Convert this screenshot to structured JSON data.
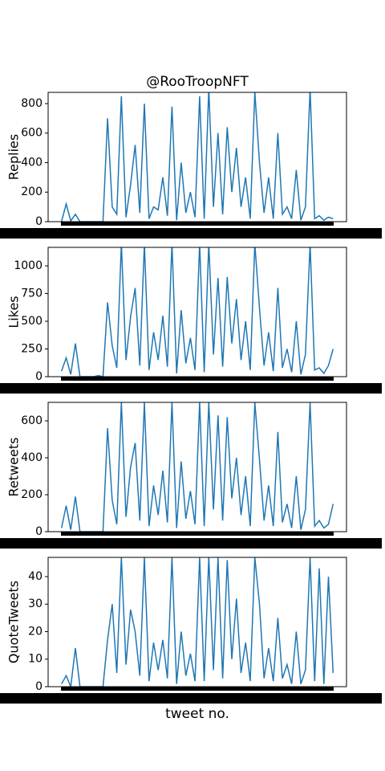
{
  "chart_data": [
    {
      "type": "line",
      "title": "@RooTroopNFT",
      "ylabel": "Replies",
      "color": "#1f77b4",
      "values": [
        0,
        120,
        5,
        50,
        0,
        0,
        0,
        0,
        0,
        0,
        700,
        100,
        50,
        850,
        30,
        250,
        520,
        60,
        800,
        20,
        100,
        80,
        300,
        40,
        780,
        10,
        400,
        60,
        200,
        30,
        850,
        20,
        900,
        100,
        600,
        50,
        640,
        200,
        500,
        100,
        300,
        20,
        880,
        400,
        60,
        300,
        20,
        600,
        50,
        100,
        20,
        350,
        10,
        100,
        900,
        20,
        40,
        10,
        30,
        20
      ],
      "ylim": [
        0,
        876
      ],
      "yticks": [
        0,
        200,
        400,
        600,
        800
      ]
    },
    {
      "type": "line",
      "ylabel": "Likes",
      "color": "#1f77b4",
      "values": [
        50,
        170,
        20,
        300,
        0,
        0,
        0,
        0,
        10,
        0,
        670,
        280,
        80,
        1200,
        150,
        540,
        800,
        100,
        1200,
        60,
        400,
        150,
        550,
        90,
        1200,
        30,
        600,
        120,
        350,
        60,
        1200,
        40,
        1200,
        200,
        890,
        90,
        900,
        300,
        700,
        150,
        500,
        60,
        1200,
        620,
        100,
        400,
        50,
        800,
        80,
        250,
        40,
        500,
        20,
        200,
        1200,
        60,
        80,
        30,
        100,
        250
      ],
      "ylim": [
        0,
        1167
      ],
      "yticks": [
        0,
        250,
        500,
        750,
        1000
      ]
    },
    {
      "type": "line",
      "ylabel": "Retweets",
      "color": "#1f77b4",
      "values": [
        20,
        140,
        10,
        190,
        0,
        0,
        0,
        0,
        0,
        0,
        560,
        170,
        40,
        700,
        80,
        350,
        480,
        60,
        700,
        30,
        250,
        90,
        330,
        50,
        700,
        20,
        380,
        70,
        220,
        40,
        700,
        30,
        700,
        120,
        630,
        60,
        620,
        180,
        400,
        90,
        300,
        30,
        700,
        390,
        60,
        250,
        30,
        540,
        50,
        150,
        20,
        300,
        10,
        120,
        700,
        30,
        60,
        20,
        40,
        150
      ],
      "ylim": [
        0,
        700
      ],
      "yticks": [
        0,
        200,
        400,
        600
      ]
    },
    {
      "type": "line",
      "ylabel": "QuoteTweets",
      "xlabel": "tweet no.",
      "color": "#1f77b4",
      "values": [
        1,
        4,
        0,
        14,
        0,
        0,
        0,
        0,
        0,
        0,
        17,
        30,
        5,
        47,
        8,
        28,
        20,
        4,
        47,
        2,
        16,
        6,
        17,
        3,
        47,
        1,
        20,
        4,
        12,
        2,
        47,
        2,
        47,
        6,
        47,
        3,
        46,
        10,
        32,
        5,
        16,
        2,
        47,
        30,
        3,
        14,
        2,
        25,
        3,
        8,
        1,
        20,
        1,
        6,
        47,
        2,
        43,
        1,
        40,
        5
      ],
      "ylim": [
        0,
        47
      ],
      "yticks": [
        0,
        10,
        20,
        30,
        40
      ]
    }
  ]
}
